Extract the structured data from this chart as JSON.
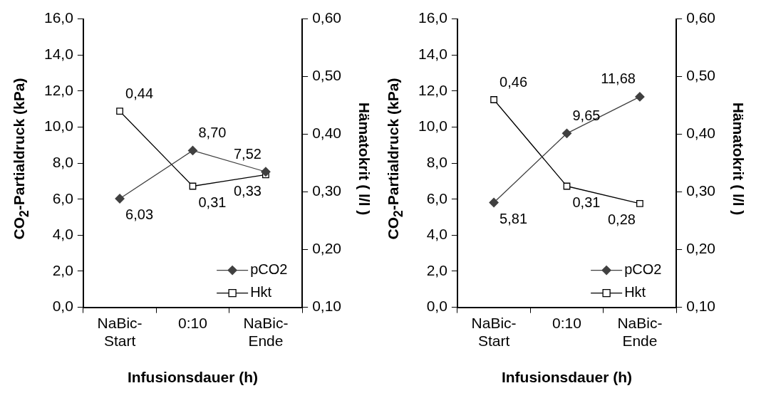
{
  "chart_data": [
    {
      "type": "line",
      "xlabel": "Infusionsdauer (h)",
      "ylabel": "CO$_{2}$-Partialdruck (kPa)",
      "y2label": "Hämatokrit ( l/l )",
      "categories": [
        "NaBic-Start",
        "0:10",
        "NaBic-Ende"
      ],
      "series": [
        {
          "name": "pCO2",
          "color": "#404040",
          "marker": "diamond",
          "values": [
            6.03,
            8.7,
            7.52
          ],
          "value_labels": [
            "6,03",
            "8,70",
            "7,52"
          ]
        },
        {
          "name": "Hkt",
          "color": "#000000",
          "marker": "square",
          "axis": "y2",
          "values": [
            0.44,
            0.31,
            0.33
          ],
          "value_labels": [
            "0,44",
            "0,31",
            "0,33"
          ]
        }
      ],
      "ylim": [
        0,
        16
      ],
      "yticks": [
        {
          "value": 0,
          "label": "0,0"
        },
        {
          "value": 2,
          "label": "2,0"
        },
        {
          "value": 4,
          "label": "4,0"
        },
        {
          "value": 6,
          "label": "6,0"
        },
        {
          "value": 8,
          "label": "8,0"
        },
        {
          "value": 10,
          "label": "10,0"
        },
        {
          "value": 12,
          "label": "12,0"
        },
        {
          "value": 14,
          "label": "14,0"
        },
        {
          "value": 16,
          "label": "16,0"
        }
      ],
      "y2lim": [
        0.1,
        0.6
      ],
      "y2ticks": [
        {
          "value": 0.1,
          "label": "0,10"
        },
        {
          "value": 0.2,
          "label": "0,20"
        },
        {
          "value": 0.3,
          "label": "0,30"
        },
        {
          "value": 0.4,
          "label": "0,40"
        },
        {
          "value": 0.5,
          "label": "0,50"
        },
        {
          "value": 0.6,
          "label": "0,60"
        }
      ],
      "grid": false,
      "legend": "bottom right"
    },
    {
      "type": "line",
      "xlabel": "Infusionsdauer (h)",
      "ylabel": "CO$_{2}$-Partialdruck (kPa)",
      "y2label": "Hämatokrit ( l/l )",
      "categories": [
        "NaBic-Start",
        "0:10",
        "NaBic-Ende"
      ],
      "series": [
        {
          "name": "pCO2",
          "color": "#404040",
          "marker": "diamond",
          "values": [
            5.81,
            9.65,
            11.68
          ],
          "value_labels": [
            "5,81",
            "9,65",
            "11,68"
          ]
        },
        {
          "name": "Hkt",
          "color": "#000000",
          "marker": "square",
          "axis": "y2",
          "values": [
            0.46,
            0.31,
            0.28
          ],
          "value_labels": [
            "0,46",
            "0,31",
            "0,28"
          ]
        }
      ],
      "ylim": [
        0,
        16
      ],
      "yticks": [
        {
          "value": 0,
          "label": "0,0"
        },
        {
          "value": 2,
          "label": "2,0"
        },
        {
          "value": 4,
          "label": "4,0"
        },
        {
          "value": 6,
          "label": "6,0"
        },
        {
          "value": 8,
          "label": "8,0"
        },
        {
          "value": 10,
          "label": "10,0"
        },
        {
          "value": 12,
          "label": "12,0"
        },
        {
          "value": 14,
          "label": "14,0"
        },
        {
          "value": 16,
          "label": "16,0"
        }
      ],
      "y2lim": [
        0.1,
        0.6
      ],
      "y2ticks": [
        {
          "value": 0.1,
          "label": "0,10"
        },
        {
          "value": 0.2,
          "label": "0,20"
        },
        {
          "value": 0.3,
          "label": "0,30"
        },
        {
          "value": 0.4,
          "label": "0,40"
        },
        {
          "value": 0.5,
          "label": "0,50"
        },
        {
          "value": 0.6,
          "label": "0,60"
        }
      ],
      "grid": false,
      "legend": "bottom right"
    }
  ]
}
